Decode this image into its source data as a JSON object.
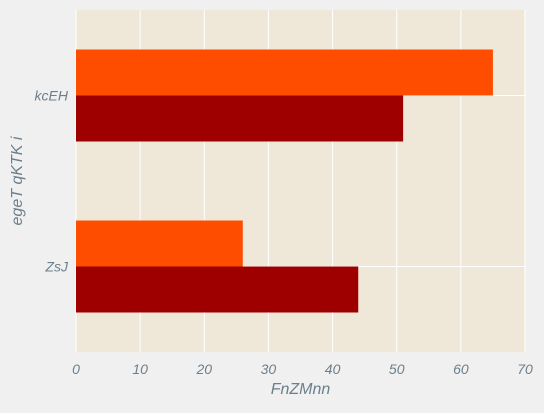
{
  "chart_data": {
    "type": "bar",
    "orientation": "horizontal",
    "title": "",
    "xlabel": "FnZMnn",
    "ylabel": "egeT qKTK i",
    "categories": [
      "kcEH",
      "ZsJ"
    ],
    "series": [
      {
        "values": [
          65,
          26
        ],
        "color": "#ff4d00"
      },
      {
        "values": [
          51,
          44
        ],
        "color": "#9e0000"
      }
    ],
    "xlim": [
      0,
      70
    ],
    "xticks": [
      0,
      10,
      20,
      30,
      40,
      50,
      60,
      70
    ],
    "grid": true,
    "legend": "none"
  },
  "colors": {
    "page_background": "#f0f0f0",
    "plot_background": "#efe8d8",
    "grid": "#ffffff",
    "label_text": "#6b7f8c"
  }
}
